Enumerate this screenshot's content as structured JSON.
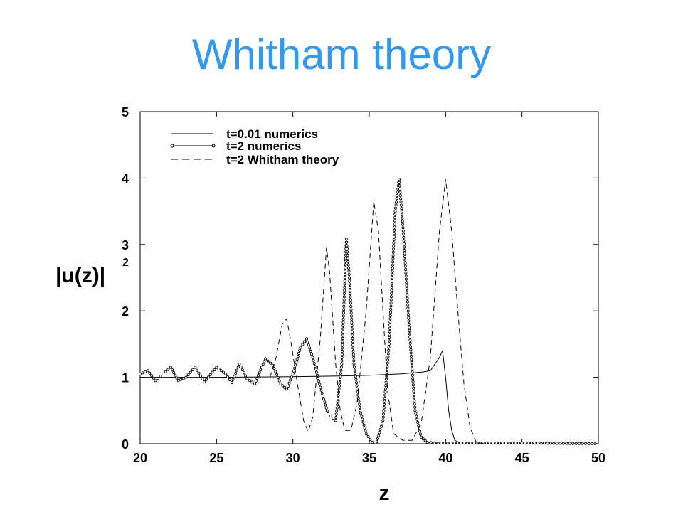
{
  "slide": {
    "title": "Whitham theory"
  },
  "chart_data": {
    "type": "line",
    "title": "",
    "xlabel": "z",
    "ylabel": "|u(z)|",
    "ylabel_superscript": "2",
    "xlim": [
      20,
      50
    ],
    "ylim": [
      0,
      5
    ],
    "x_ticks": [
      20,
      25,
      30,
      35,
      40,
      45,
      50
    ],
    "y_ticks": [
      0,
      1,
      2,
      3,
      4,
      5
    ],
    "grid": false,
    "legend_position": "top-left",
    "series": [
      {
        "name": "t=0.01 numerics",
        "style": "solid",
        "points": [
          [
            20,
            1.0
          ],
          [
            25,
            1.0
          ],
          [
            30,
            1.01
          ],
          [
            33,
            1.02
          ],
          [
            35,
            1.03
          ],
          [
            37,
            1.05
          ],
          [
            38.5,
            1.08
          ],
          [
            39.0,
            1.1
          ],
          [
            39.3,
            1.2
          ],
          [
            39.6,
            1.3
          ],
          [
            39.8,
            1.4
          ],
          [
            40.0,
            1.0
          ],
          [
            40.2,
            0.5
          ],
          [
            40.4,
            0.2
          ],
          [
            40.6,
            0.05
          ],
          [
            41,
            0.01
          ],
          [
            50,
            0.0
          ]
        ]
      },
      {
        "name": "t=2 numerics",
        "style": "solid-circles",
        "points": [
          [
            20,
            1.05
          ],
          [
            20.5,
            1.1
          ],
          [
            21.0,
            0.95
          ],
          [
            21.5,
            1.05
          ],
          [
            22.0,
            1.15
          ],
          [
            22.5,
            0.95
          ],
          [
            23.0,
            1.0
          ],
          [
            23.6,
            1.15
          ],
          [
            24.2,
            0.93
          ],
          [
            25.0,
            1.15
          ],
          [
            25.6,
            1.05
          ],
          [
            26.0,
            0.92
          ],
          [
            26.5,
            1.2
          ],
          [
            27.0,
            0.98
          ],
          [
            27.5,
            0.9
          ],
          [
            28.2,
            1.28
          ],
          [
            28.7,
            1.18
          ],
          [
            29.2,
            0.9
          ],
          [
            29.6,
            0.82
          ],
          [
            30.0,
            1.05
          ],
          [
            30.5,
            1.45
          ],
          [
            30.9,
            1.58
          ],
          [
            31.3,
            1.3
          ],
          [
            31.8,
            0.85
          ],
          [
            32.3,
            0.45
          ],
          [
            32.8,
            0.35
          ],
          [
            33.2,
            1.2
          ],
          [
            33.5,
            3.08
          ],
          [
            33.7,
            2.5
          ],
          [
            34.0,
            1.2
          ],
          [
            34.4,
            0.5
          ],
          [
            34.8,
            0.15
          ],
          [
            35.2,
            0.02
          ],
          [
            35.5,
            0.03
          ],
          [
            35.9,
            0.35
          ],
          [
            36.3,
            1.5
          ],
          [
            36.7,
            3.5
          ],
          [
            36.95,
            3.98
          ],
          [
            37.2,
            3.3
          ],
          [
            37.6,
            1.8
          ],
          [
            38.0,
            0.5
          ],
          [
            38.4,
            0.1
          ],
          [
            38.8,
            0.02
          ],
          [
            39.5,
            0.01
          ],
          [
            41,
            0.01
          ],
          [
            45,
            0.01
          ],
          [
            50,
            0.0
          ]
        ]
      },
      {
        "name": "t=2 Whitham theory",
        "style": "dashed",
        "points": [
          [
            28.5,
            1.0
          ],
          [
            28.9,
            1.3
          ],
          [
            29.3,
            1.8
          ],
          [
            29.6,
            1.88
          ],
          [
            29.9,
            1.5
          ],
          [
            30.3,
            0.9
          ],
          [
            30.7,
            0.35
          ],
          [
            31.0,
            0.18
          ],
          [
            31.3,
            0.4
          ],
          [
            31.8,
            1.6
          ],
          [
            32.2,
            2.95
          ],
          [
            32.4,
            2.6
          ],
          [
            32.8,
            1.2
          ],
          [
            33.1,
            0.5
          ],
          [
            33.4,
            0.2
          ],
          [
            33.8,
            0.2
          ],
          [
            34.2,
            0.6
          ],
          [
            34.8,
            2.0
          ],
          [
            35.3,
            3.65
          ],
          [
            35.6,
            3.2
          ],
          [
            35.9,
            2.0
          ],
          [
            36.2,
            0.8
          ],
          [
            36.6,
            0.15
          ],
          [
            37.2,
            0.05
          ],
          [
            37.8,
            0.05
          ],
          [
            38.4,
            0.3
          ],
          [
            39.0,
            1.3
          ],
          [
            39.6,
            3.2
          ],
          [
            40.0,
            3.98
          ],
          [
            40.4,
            3.2
          ],
          [
            40.8,
            2.0
          ],
          [
            41.2,
            0.9
          ],
          [
            41.6,
            0.25
          ],
          [
            42.0,
            0.02
          ],
          [
            42.5,
            0.0
          ]
        ]
      }
    ]
  }
}
